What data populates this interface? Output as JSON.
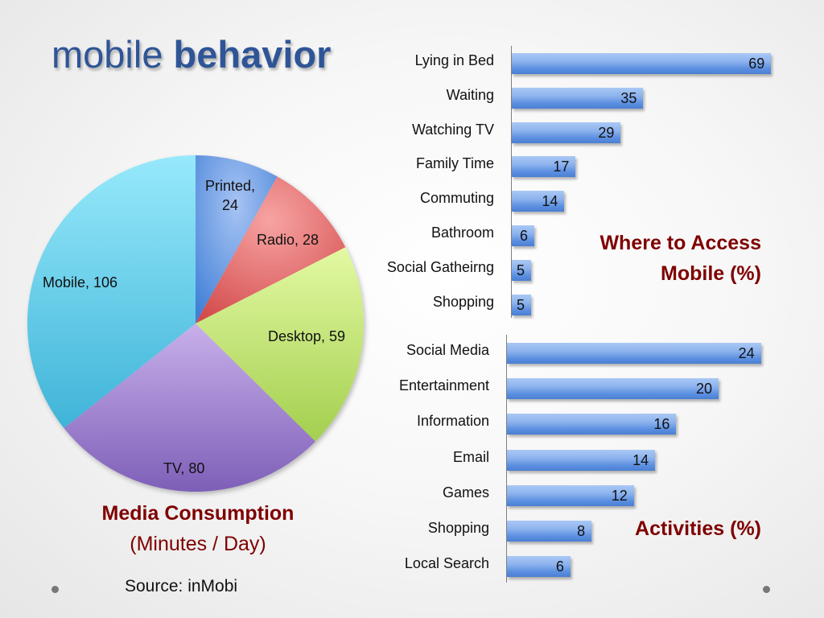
{
  "slide": {
    "title_regular": "mobile",
    "title_bold": "behavior",
    "source": "Source: inMobi"
  },
  "pie": {
    "caption_line1": "Media Consumption",
    "caption_line2": "(Minutes / Day)"
  },
  "top_chart": {
    "title_line1": "Where to Access",
    "title_line2": "Mobile (%)"
  },
  "bottom_chart": {
    "title": "Activities (%)"
  },
  "colors": {
    "title": "#2f5597",
    "accent_red": "#7f0000",
    "bar": "#5b8fe0",
    "printed": "#6f9de8",
    "radio": "#e8696a",
    "desktop": "#c5e47a",
    "tv": "#a98fd6",
    "mobile": "#6fd3ef"
  },
  "chart_data": [
    {
      "type": "pie",
      "title": "Media Consumption (Minutes / Day)",
      "categories": [
        "Printed",
        "Radio",
        "Desktop",
        "TV",
        "Mobile"
      ],
      "values": [
        24,
        28,
        59,
        80,
        106
      ],
      "labels": [
        "Printed, 24",
        "Radio, 28",
        "Desktop, 59",
        "TV, 80",
        "Mobile, 106"
      ],
      "start_angle": "12 o'clock, clockwise"
    },
    {
      "type": "bar",
      "orientation": "horizontal",
      "title": "Where to Access Mobile (%)",
      "categories": [
        "Lying in Bed",
        "Waiting",
        "Watching TV",
        "Family Time",
        "Commuting",
        "Bathroom",
        "Social Gatheirng",
        "Shopping"
      ],
      "values": [
        69,
        35,
        29,
        17,
        14,
        6,
        5,
        5
      ],
      "xlabel": "",
      "ylabel": "",
      "grid": false,
      "data_labels": true
    },
    {
      "type": "bar",
      "orientation": "horizontal",
      "title": "Activities (%)",
      "categories": [
        "Social Media",
        "Entertainment",
        "Information",
        "Email",
        "Games",
        "Shopping",
        "Local Search"
      ],
      "values": [
        24,
        20,
        16,
        14,
        12,
        8,
        6
      ],
      "xlabel": "",
      "ylabel": "",
      "grid": false,
      "data_labels": true
    }
  ]
}
